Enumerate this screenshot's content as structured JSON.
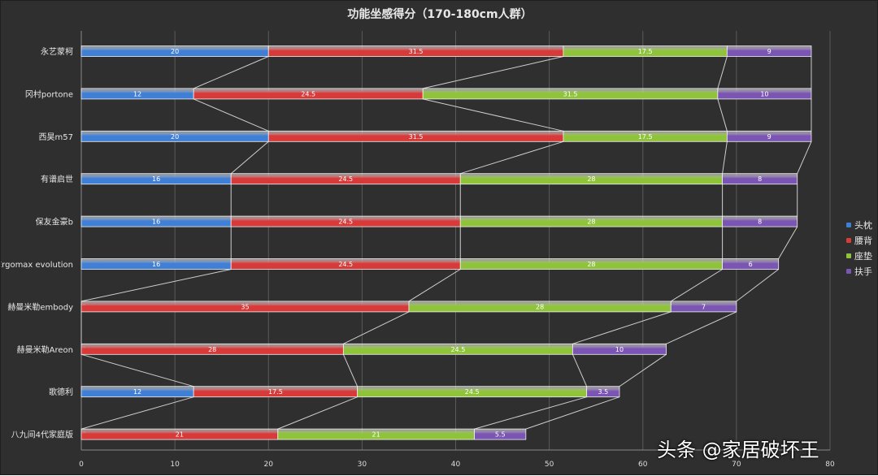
{
  "chart_data": {
    "type": "bar",
    "orientation": "horizontal",
    "stacked": true,
    "title": "功能坐感得分（170-180cm人群）",
    "categories": [
      "永艺蒙柯",
      "冈村portone",
      "西昊m57",
      "有谱启世",
      "保友金豪b",
      "Ergomax evolution",
      "赫曼米勒embody",
      "赫曼米勒Areon",
      "歌德利",
      "八九间4代家庭版"
    ],
    "series": [
      {
        "name": "头枕",
        "color": "#3f7fd6",
        "values": [
          20,
          12,
          20,
          16,
          16,
          16,
          0,
          0,
          12,
          0
        ]
      },
      {
        "name": "腰背",
        "color": "#d83a3a",
        "values": [
          31.5,
          24.5,
          31.5,
          24.5,
          24.5,
          24.5,
          35,
          28,
          17.5,
          21
        ]
      },
      {
        "name": "座垫",
        "color": "#8fc43a",
        "values": [
          17.5,
          31.5,
          17.5,
          28,
          28,
          28,
          28,
          24.5,
          24.5,
          21
        ]
      },
      {
        "name": "扶手",
        "color": "#7b55b3",
        "values": [
          9,
          10,
          9,
          8,
          8,
          6,
          7,
          10,
          3.5,
          5.5
        ]
      }
    ],
    "xlim": [
      0,
      80
    ],
    "xticks": [
      0,
      10,
      20,
      30,
      40,
      50,
      60,
      70,
      80
    ],
    "grid": true,
    "series_lines": true,
    "legend_position": "right"
  },
  "watermark": "头条 @家居破坏王"
}
